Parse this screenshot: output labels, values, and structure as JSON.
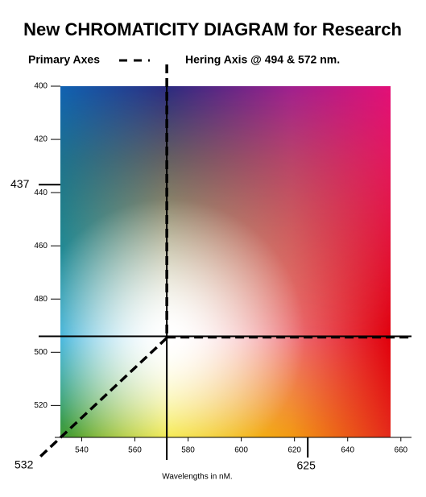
{
  "chart_data": {
    "type": "chromaticity",
    "title": "New CHROMATICITY DIAGRAM for Research",
    "primary_axes_label": "Primary Axes",
    "hering_axes": {
      "label": "Hering Axis @ 494 & 572 nm.",
      "x": 572,
      "y": 494
    },
    "xlabel": "Wavelengths in nM.",
    "xlim": [
      532,
      664
    ],
    "xticks": [
      540,
      560,
      580,
      600,
      620,
      640,
      660
    ],
    "ylim": [
      400,
      532
    ],
    "yticks": [
      400,
      420,
      440,
      460,
      480,
      500,
      520
    ],
    "marked_wavelengths": {
      "y": 437,
      "x": 625,
      "corner": 532
    }
  }
}
